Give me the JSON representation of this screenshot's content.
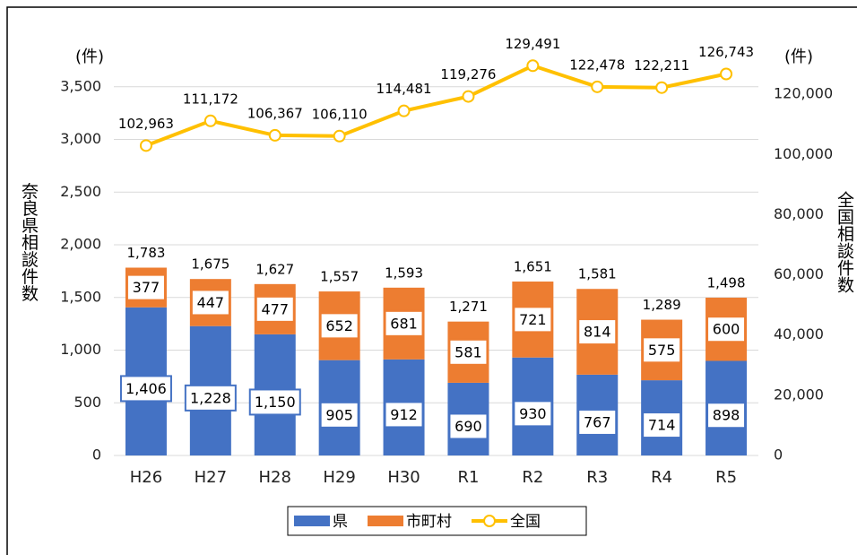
{
  "chart_data": {
    "type": "bar-line",
    "y_unit": "(件)",
    "y_label": "奈良県相談件数",
    "y2_unit": "(件)",
    "y2_label": "全国相談件数",
    "categories": [
      "H26",
      "H27",
      "H28",
      "H29",
      "H30",
      "R1",
      "R2",
      "R3",
      "R4",
      "R5"
    ],
    "series": [
      {
        "name": "県",
        "color": "#4472c4",
        "type": "bar",
        "values": [
          1406,
          1228,
          1150,
          905,
          912,
          690,
          930,
          767,
          714,
          898
        ],
        "value_labels": [
          "1,406",
          "1,228",
          "1,150",
          "905",
          "912",
          "690",
          "930",
          "767",
          "714",
          "898"
        ]
      },
      {
        "name": "市町村",
        "color": "#ed7d31",
        "type": "bar",
        "values": [
          377,
          447,
          477,
          652,
          681,
          581,
          721,
          814,
          575,
          600
        ],
        "value_labels": [
          "377",
          "447",
          "477",
          "652",
          "681",
          "581",
          "721",
          "814",
          "575",
          "600"
        ]
      },
      {
        "name": "全国",
        "color": "#ffc000",
        "type": "line",
        "axis": "y2",
        "values": [
          102963,
          111172,
          106367,
          106110,
          114481,
          119276,
          129491,
          122478,
          122211,
          126743
        ],
        "value_labels": [
          "102,963",
          "111,172",
          "106,367",
          "106,110",
          "114,481",
          "119,276",
          "129,491",
          "122,478",
          "122,211",
          "126,743"
        ]
      }
    ],
    "totals": {
      "values": [
        1783,
        1675,
        1627,
        1557,
        1593,
        1271,
        1651,
        1581,
        1289,
        1498
      ],
      "value_labels": [
        "1,783",
        "1,675",
        "1,627",
        "1,557",
        "1,593",
        "1,271",
        "1,651",
        "1,581",
        "1,289",
        "1,498"
      ]
    },
    "ylim": [
      0,
      4000
    ],
    "yticks": [
      0,
      500,
      {
        "value": 1000,
        "label": "1,000"
      },
      {
        "value": 1500,
        "label": "1,500"
      },
      {
        "value": 2000,
        "label": "2,000"
      },
      {
        "value": 2500,
        "label": "2,500"
      },
      {
        "value": 3000,
        "label": "3,000"
      },
      {
        "value": 3500,
        "label": "3,500"
      }
    ],
    "y2lim": [
      0,
      140000
    ],
    "y2ticks": [
      0,
      {
        "value": 20000,
        "label": "20,000"
      },
      {
        "value": 40000,
        "label": "40,000"
      },
      {
        "value": 60000,
        "label": "60,000"
      },
      {
        "value": 80000,
        "label": "80,000"
      },
      {
        "value": 100000,
        "label": "100,000"
      },
      {
        "value": 120000,
        "label": "120,000"
      }
    ],
    "grid": true
  }
}
